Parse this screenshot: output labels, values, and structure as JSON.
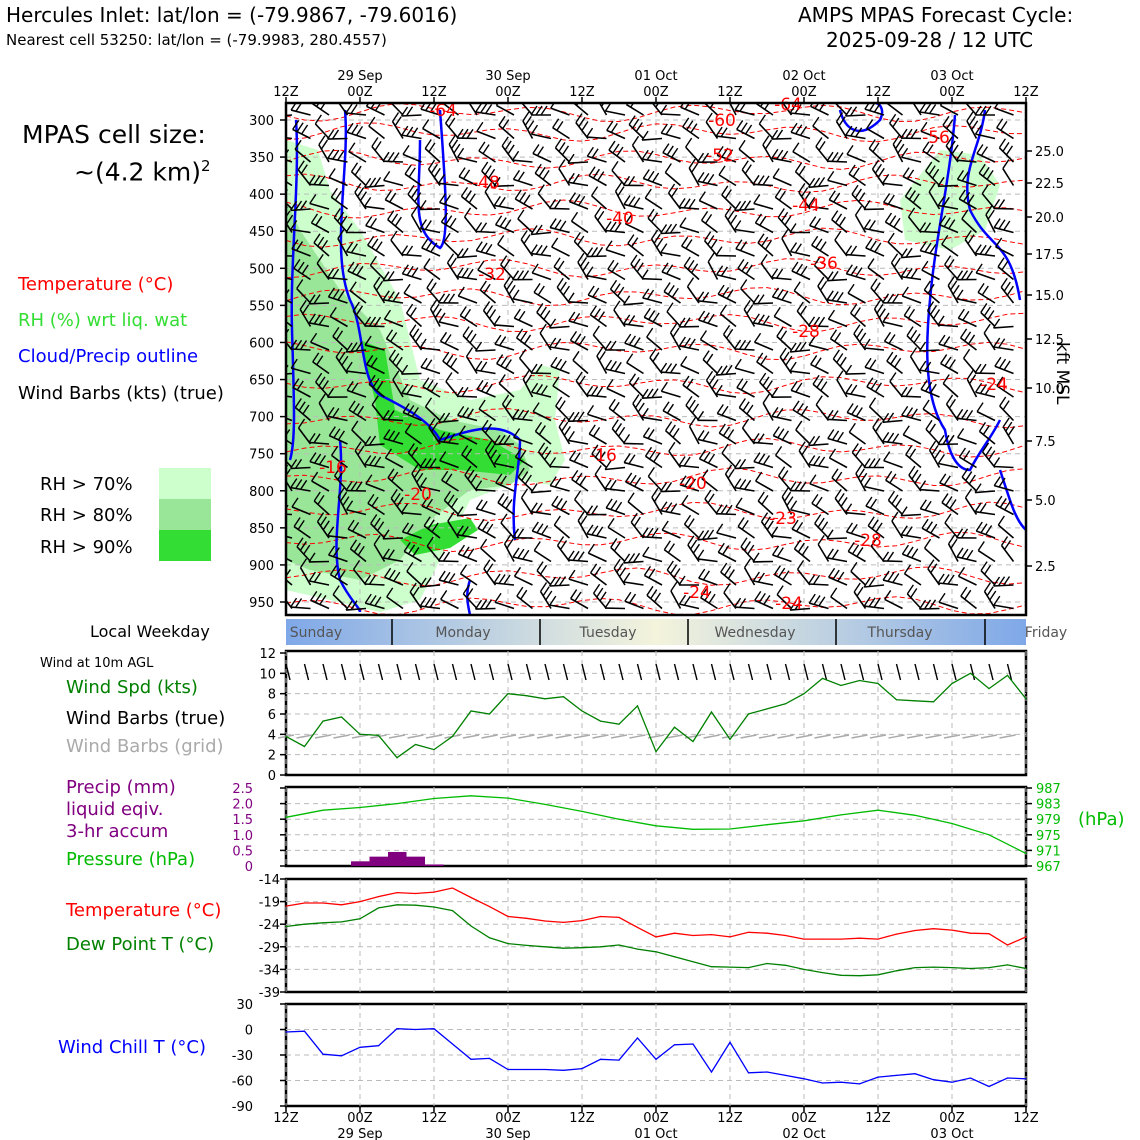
{
  "header": {
    "location": "Hercules Inlet: lat/lon = (-79.9867, -79.6016)",
    "nearest_cell": "Nearest cell 53250: lat/lon = (-79.9983, 280.4557)",
    "forecast_title": "AMPS MPAS Forecast Cycle:",
    "forecast_cycle": "2025-09-28 / 12 UTC"
  },
  "cell_size": {
    "line1": "MPAS cell size:",
    "line2": "~(4.2 km)",
    "sup": "2"
  },
  "legend_upper": {
    "temperature": "Temperature (°C)",
    "rh": "RH (%) wrt liq. wat",
    "cloud": "Cloud/Precip outline",
    "wind_barbs": "Wind Barbs (kts) (true)",
    "rh70": "RH > 70%",
    "rh80": "RH > 80%",
    "rh90": "RH > 90%"
  },
  "colors": {
    "temperature": "#ff0000",
    "rh_label": "#33dd33",
    "cloud": "#0000ff",
    "rh70": "#ccffcc",
    "rh80": "#99e699",
    "rh90": "#33dd33",
    "wind_speed": "#008000",
    "grid_barbs": "#aaaaaa",
    "precip": "#800080",
    "pressure": "#00bb00",
    "dew_point": "#008000",
    "wind_chill": "#0000ff"
  },
  "time_axis": {
    "tick_labels": [
      "12Z",
      "00Z",
      "12Z",
      "00Z",
      "12Z",
      "00Z",
      "12Z",
      "00Z",
      "12Z",
      "00Z",
      "12Z"
    ],
    "date_labels": [
      "29 Sep",
      "30 Sep",
      "01 Oct",
      "02 Oct",
      "03 Oct"
    ]
  },
  "pressure_axis": {
    "ticks": [
      "300",
      "350",
      "400",
      "450",
      "500",
      "550",
      "600",
      "650",
      "700",
      "750",
      "800",
      "850",
      "900",
      "950"
    ],
    "right_label": "kft MSL",
    "right_ticks": [
      "25.0",
      "22.5",
      "20.0",
      "17.5",
      "15.0",
      "12.5",
      "10.0",
      "7.5",
      "5.0",
      "2.5"
    ]
  },
  "temp_contour_labels": [
    "-64",
    "-60",
    "-64",
    "-56",
    "-52",
    "-48",
    "-44",
    "-40",
    "-36",
    "-32",
    "-28",
    "-24",
    "-16",
    "-16",
    "-20",
    "-20",
    "-23",
    "-28",
    "-24",
    "-24"
  ],
  "weekday": {
    "label": "Local Weekday",
    "days": [
      "Sunday",
      "Monday",
      "Tuesday",
      "Wednesday",
      "Thursday",
      "Friday"
    ]
  },
  "wind_panel": {
    "title": "Wind at 10m AGL",
    "speed_label": "Wind Spd (kts)",
    "barbs_true": "Wind Barbs (true)",
    "barbs_grid": "Wind Barbs (grid)",
    "yticks": [
      "12",
      "10",
      "8",
      "6",
      "4",
      "2",
      "0"
    ]
  },
  "precip_panel": {
    "precip_l1": "Precip (mm)",
    "precip_l2": "liquid eqiv.",
    "precip_l3": "3-hr accum",
    "pressure_label": "Pressure (hPa)",
    "hpa_unit": "(hPa)",
    "left_ticks": [
      "2.5",
      "2.0",
      "1.5",
      "1.0",
      "0.5",
      "0"
    ],
    "right_ticks": [
      "987",
      "983",
      "979",
      "975",
      "971",
      "967"
    ]
  },
  "temp_panel": {
    "temp_label": "Temperature (°C)",
    "dew_label": "Dew Point T (°C)",
    "yticks": [
      "-14",
      "-19",
      "-24",
      "-29",
      "-34",
      "-39"
    ]
  },
  "chill_panel": {
    "label": "Wind Chill T (°C)",
    "yticks": [
      "30",
      "0",
      "-30",
      "-60",
      "-90"
    ]
  },
  "chart_data": [
    {
      "type": "line",
      "panel": "wind_speed_10m",
      "ylabel": "Wind Spd (kts)",
      "ylim": [
        0,
        12
      ],
      "x_hours": [
        0,
        3,
        6,
        9,
        12,
        15,
        18,
        21,
        24,
        27,
        30,
        33,
        36,
        39,
        42,
        45,
        48,
        51,
        54,
        57,
        60,
        63,
        66,
        69,
        72,
        75,
        78,
        81,
        84,
        87,
        90,
        93,
        96,
        99,
        102,
        105,
        108,
        111,
        114,
        117,
        120
      ],
      "series": [
        {
          "name": "Wind Spd (kts)",
          "color": "#008000",
          "values": [
            3.8,
            2.8,
            5.3,
            5.7,
            4.0,
            3.9,
            1.7,
            3.0,
            2.5,
            3.8,
            6.3,
            6.0,
            8.0,
            7.8,
            7.5,
            7.7,
            6.3,
            5.3,
            5.0,
            6.8,
            2.3,
            4.7,
            3.3,
            6.2,
            3.5,
            6.0,
            6.5,
            7.0,
            8.0,
            9.5,
            8.8,
            9.3,
            9.0,
            7.4,
            7.3,
            7.2,
            9.0,
            10.0,
            8.5,
            9.8,
            7.5
          ]
        }
      ]
    },
    {
      "type": "bar",
      "panel": "precip_3hr",
      "ylabel": "Precip (mm)",
      "ylim": [
        0,
        2.5
      ],
      "x_hours": [
        0,
        3,
        6,
        9,
        12,
        15,
        18,
        21,
        24,
        27,
        30,
        33,
        36
      ],
      "values": [
        0,
        0,
        0,
        0,
        0.15,
        0.3,
        0.45,
        0.3,
        0.05,
        0,
        0,
        0,
        0
      ]
    },
    {
      "type": "line",
      "panel": "pressure",
      "ylabel": "Pressure (hPa)",
      "ylim": [
        967,
        987
      ],
      "x_hours": [
        0,
        6,
        12,
        18,
        24,
        30,
        36,
        42,
        48,
        54,
        60,
        66,
        72,
        78,
        84,
        90,
        96,
        102,
        108,
        114,
        120
      ],
      "series": [
        {
          "name": "Pressure (hPa)",
          "color": "#00bb00",
          "values": [
            979.5,
            981.3,
            982.0,
            983.0,
            984.3,
            985.0,
            984.4,
            982.8,
            981.0,
            979.0,
            977.3,
            976.4,
            976.5,
            977.6,
            978.6,
            980.1,
            981.3,
            980.0,
            977.9,
            975.0,
            970.2
          ]
        }
      ]
    },
    {
      "type": "line",
      "panel": "temperature",
      "ylabel": "Temperature (°C)",
      "ylim": [
        -39,
        -14
      ],
      "x_hours": [
        0,
        3,
        6,
        9,
        12,
        15,
        18,
        21,
        24,
        27,
        30,
        33,
        36,
        39,
        42,
        45,
        48,
        51,
        54,
        57,
        60,
        63,
        66,
        69,
        72,
        75,
        78,
        81,
        84,
        87,
        90,
        93,
        96,
        99,
        102,
        105,
        108,
        111,
        114,
        117,
        120
      ],
      "series": [
        {
          "name": "Temperature (°C)",
          "color": "#ff0000",
          "values": [
            -20.0,
            -19.3,
            -19.3,
            -19.7,
            -19.0,
            -17.9,
            -17.0,
            -17.2,
            -16.9,
            -16.0,
            -18.1,
            -20.1,
            -22.3,
            -22.7,
            -23.3,
            -23.6,
            -23.2,
            -22.3,
            -22.5,
            -24.7,
            -26.8,
            -26.0,
            -26.5,
            -26.3,
            -26.8,
            -25.8,
            -26.0,
            -26.5,
            -27.3,
            -27.3,
            -27.3,
            -27.1,
            -27.3,
            -26.2,
            -25.4,
            -25.0,
            -25.3,
            -26.0,
            -26.1,
            -28.6,
            -26.8
          ]
        },
        {
          "name": "Dew Point T (°C)",
          "color": "#008000",
          "values": [
            -24.5,
            -24.0,
            -23.7,
            -23.5,
            -22.8,
            -20.4,
            -19.7,
            -19.8,
            -20.2,
            -21.0,
            -24.4,
            -27.0,
            -28.3,
            -28.7,
            -29.0,
            -29.3,
            -29.2,
            -29.0,
            -28.6,
            -29.5,
            -30.1,
            -31.2,
            -32.3,
            -33.4,
            -33.5,
            -33.6,
            -32.7,
            -33.1,
            -34.0,
            -34.7,
            -35.3,
            -35.4,
            -35.2,
            -34.3,
            -33.6,
            -33.5,
            -33.6,
            -33.8,
            -33.6,
            -33.0,
            -33.8
          ]
        }
      ]
    },
    {
      "type": "line",
      "panel": "wind_chill",
      "ylabel": "Wind Chill T (°C)",
      "ylim": [
        -90,
        30
      ],
      "x_hours": [
        0,
        3,
        6,
        9,
        12,
        15,
        18,
        21,
        24,
        27,
        30,
        33,
        36,
        39,
        42,
        45,
        48,
        51,
        54,
        57,
        60,
        63,
        66,
        69,
        72,
        75,
        78,
        81,
        84,
        87,
        90,
        93,
        96,
        99,
        102,
        105,
        108,
        111,
        114,
        117,
        120
      ],
      "series": [
        {
          "name": "Wind Chill T (°C)",
          "color": "#0000ff",
          "values": [
            -3,
            -2,
            -29,
            -31,
            -21,
            -19,
            1,
            0,
            1,
            -17,
            -35,
            -34,
            -47,
            -47,
            -47,
            -48,
            -46,
            -35,
            -36,
            -10,
            -35,
            -18,
            -17,
            -50,
            -15,
            -51,
            -50,
            -54,
            -58,
            -63,
            -62,
            -64,
            -56,
            -54,
            -52,
            -59,
            -62,
            -57,
            -67,
            -57,
            -58
          ]
        }
      ]
    }
  ]
}
